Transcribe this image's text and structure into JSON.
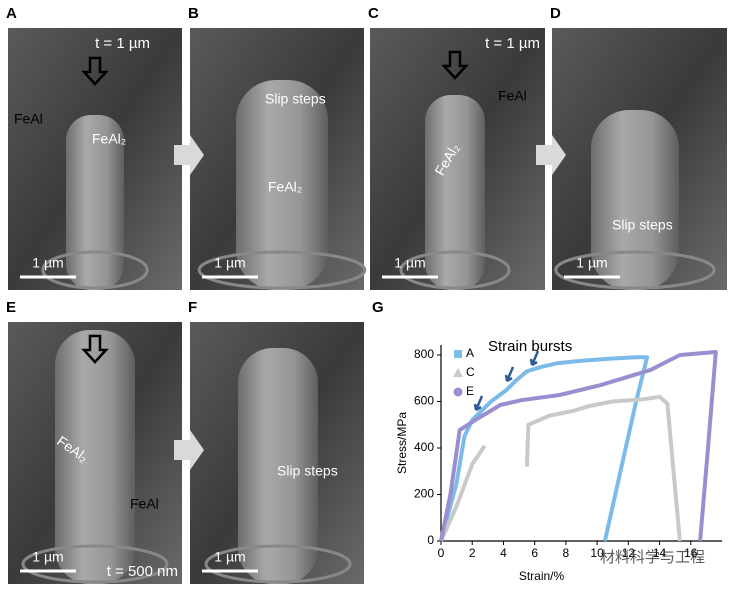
{
  "panels": [
    {
      "letter": "A",
      "texts": [
        "t = 1 µm",
        "FeAl",
        "FeAl₂"
      ],
      "scale_bar": "1 µm"
    },
    {
      "letter": "B",
      "texts": [
        "Slip steps",
        "FeAl₂"
      ],
      "scale_bar": "1 µm"
    },
    {
      "letter": "C",
      "texts": [
        "t = 1 µm",
        "FeAl",
        "FeAl₂"
      ],
      "scale_bar": "1 µm"
    },
    {
      "letter": "D",
      "texts": [
        "Slip steps"
      ],
      "scale_bar": "1 µm"
    },
    {
      "letter": "E",
      "texts": [
        "FeAl₂",
        "FeAl",
        "t = 500 nm"
      ],
      "scale_bar": "1 µm"
    },
    {
      "letter": "F",
      "texts": [
        "Slip steps"
      ],
      "scale_bar": "1 µm"
    }
  ],
  "chart_data": {
    "type": "line",
    "letter": "G",
    "annotation": "Strain bursts",
    "x_label": "Strain/%",
    "y_label": "Stress/MPa",
    "xlim": [
      0,
      18
    ],
    "ylim": [
      0,
      843
    ],
    "xticks": [
      0,
      2,
      4,
      6,
      8,
      10,
      12,
      14,
      16
    ],
    "yticks": [
      0,
      200,
      400,
      600,
      800
    ],
    "legend": "upper left",
    "series": [
      {
        "name": "A",
        "color": "#7cbbe8",
        "marker": "square",
        "x": [
          0,
          1.0,
          1.5,
          2.0,
          2.6,
          3.2,
          4.2,
          4.8,
          5.5,
          6.5,
          7.5,
          9,
          11,
          12.5,
          13.2,
          12.5,
          11.5,
          10.5
        ],
        "values": [
          0,
          250,
          450,
          520,
          560,
          600,
          650,
          690,
          730,
          750,
          765,
          775,
          785,
          790,
          790,
          600,
          300,
          0
        ]
      },
      {
        "name": "C",
        "color": "#c9c9c9",
        "marker": "triangle",
        "x": [
          0,
          1,
          2,
          2.8,
          null,
          5.5,
          5.6,
          7,
          8.5,
          9.5,
          11,
          13,
          14,
          14.5,
          15.3
        ],
        "values": [
          0,
          150,
          330,
          410,
          null,
          320,
          500,
          540,
          560,
          580,
          600,
          610,
          620,
          590,
          0
        ]
      },
      {
        "name": "E",
        "color": "#9a8ed0",
        "marker": "circle",
        "x": [
          0,
          0.6,
          1.2,
          2.2,
          3.8,
          5.1,
          7.6,
          10.2,
          13.4,
          15.3,
          17.6,
          17.1,
          16.6
        ],
        "values": [
          0,
          200,
          477,
          520,
          585,
          605,
          628,
          670,
          735,
          800,
          813,
          400,
          0
        ]
      }
    ]
  },
  "watermark": "材料科学与工程"
}
